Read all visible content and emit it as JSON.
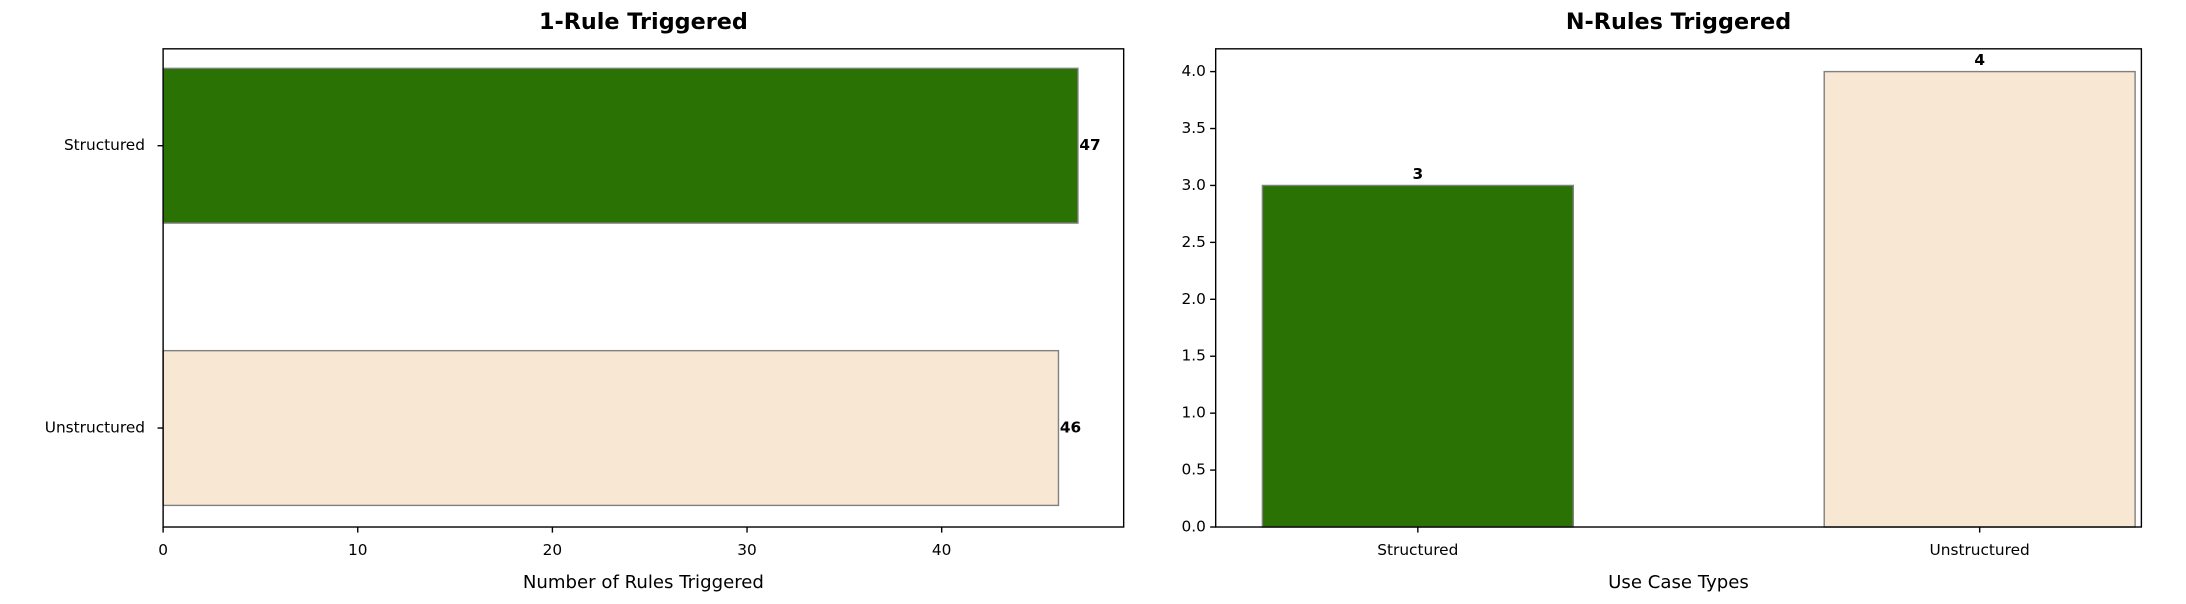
{
  "chart_data": [
    {
      "type": "barh",
      "title": "1-Rule Triggered",
      "categories": [
        "Structured",
        "Unstructured"
      ],
      "values": [
        47,
        46
      ],
      "colors": [
        "#2a7203",
        "#f7e7d3"
      ],
      "xlabel": "Number of Rules Triggered",
      "xlim": [
        0,
        49.35
      ],
      "xticks": [
        0,
        10,
        20,
        30,
        40
      ]
    },
    {
      "type": "bar",
      "title": "N-Rules Triggered",
      "categories": [
        "Structured",
        "Unstructured"
      ],
      "values": [
        3,
        4
      ],
      "colors": [
        "#2a7203",
        "#f7e7d3"
      ],
      "xlabel": "Use Case Types",
      "ylim": [
        0,
        4.2
      ],
      "yticks": [
        {
          "value": 0,
          "label": "0.0"
        },
        0.5,
        {
          "value": 1,
          "label": "1.0"
        },
        1.5,
        {
          "value": 2,
          "label": "2.0"
        },
        2.5,
        {
          "value": 3,
          "label": "3.0"
        },
        3.5,
        {
          "value": 4,
          "label": "4.0"
        }
      ]
    }
  ]
}
